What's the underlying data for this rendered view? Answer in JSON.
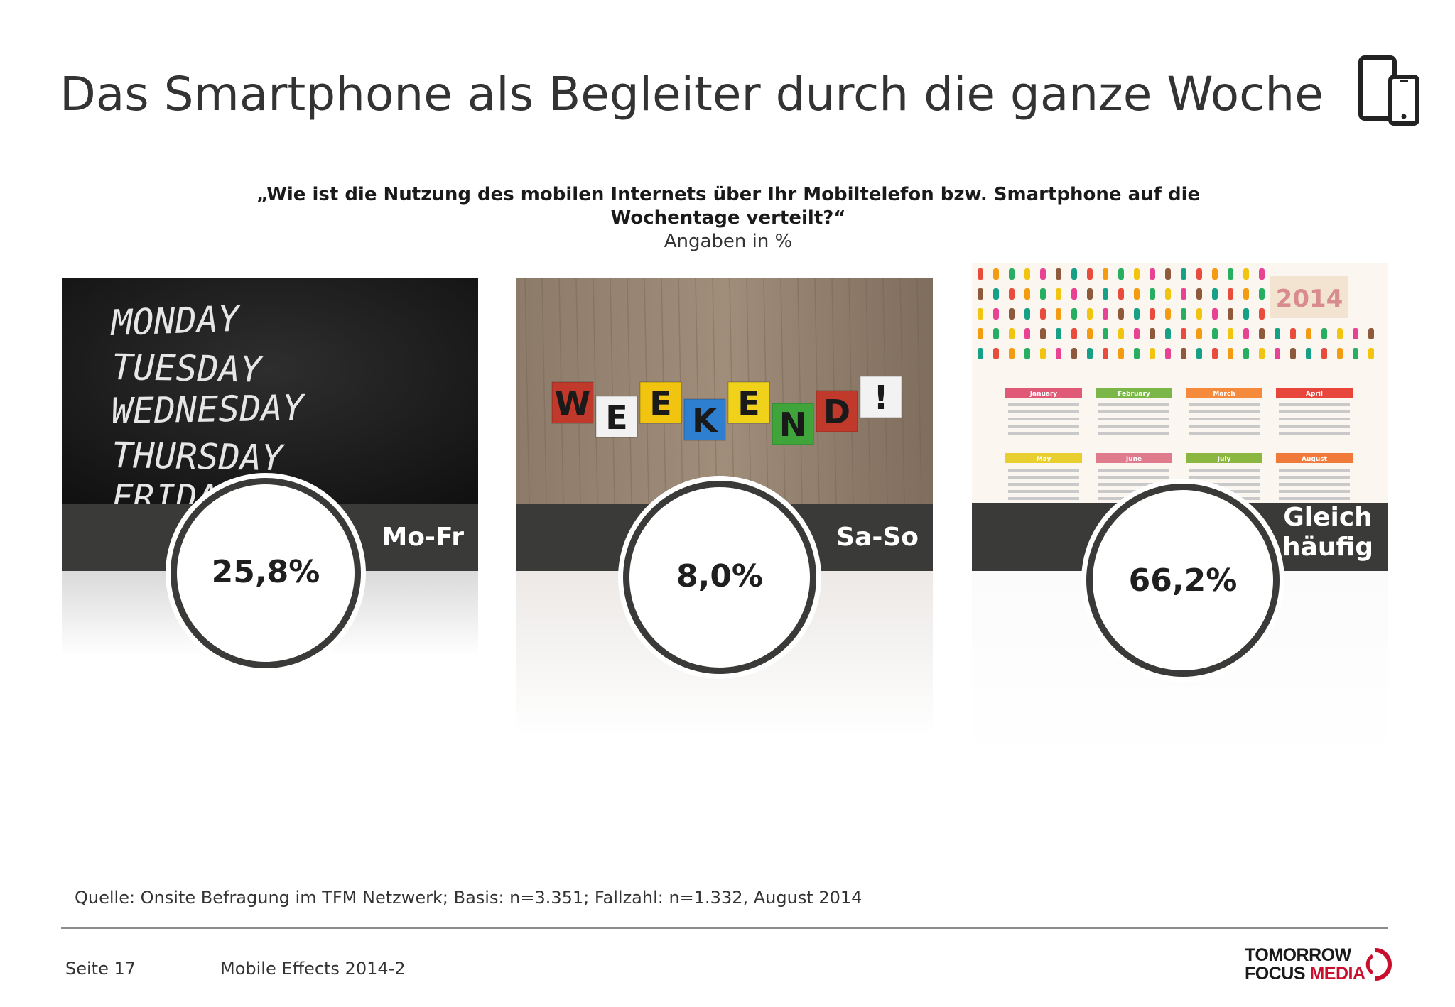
{
  "page": {
    "title": "Das Smartphone als Begleiter durch die ganze Woche",
    "question": "„Wie ist die Nutzung des mobilen Internets über Ihr Mobiltelefon bzw. Smartphone auf die Wochentage verteilt?“",
    "unit_note": "Angaben in %",
    "source": "Quelle: Onsite Befragung im TFM Netzwerk; Basis: n=3.351; Fallzahl: n=1.332, August 2014",
    "footer": {
      "page": "Seite 17",
      "publication": "Mobile Effects 2014-2"
    },
    "logo": {
      "line1": "TOMORROW",
      "line2a": "FOCUS ",
      "line2b": "MEDIA"
    },
    "icons": [
      "smartphone-tablet-icon"
    ],
    "colors": {
      "band": "#3a3a38",
      "accent": "#c8102e"
    }
  },
  "chart_data": {
    "type": "bar",
    "categories": [
      "Mo-Fr",
      "Sa-So",
      "Gleich häufig"
    ],
    "values": [
      25.8,
      8.0,
      66.2
    ],
    "value_labels": [
      "25,8%",
      "8,0%",
      "66,2%"
    ],
    "unit": "%"
  },
  "photos": {
    "weekdays": [
      "MONDAY",
      "TUESDAY",
      "WEDNESDAY",
      "THURSDAY",
      "FRIDAY"
    ],
    "weekend_blocks": [
      "W",
      "E",
      "E",
      "K",
      "E",
      "N",
      "D",
      "!"
    ],
    "calendar_year": "2014",
    "calendar_months": [
      "January",
      "February",
      "March",
      "April",
      "May",
      "June",
      "July",
      "August"
    ]
  }
}
